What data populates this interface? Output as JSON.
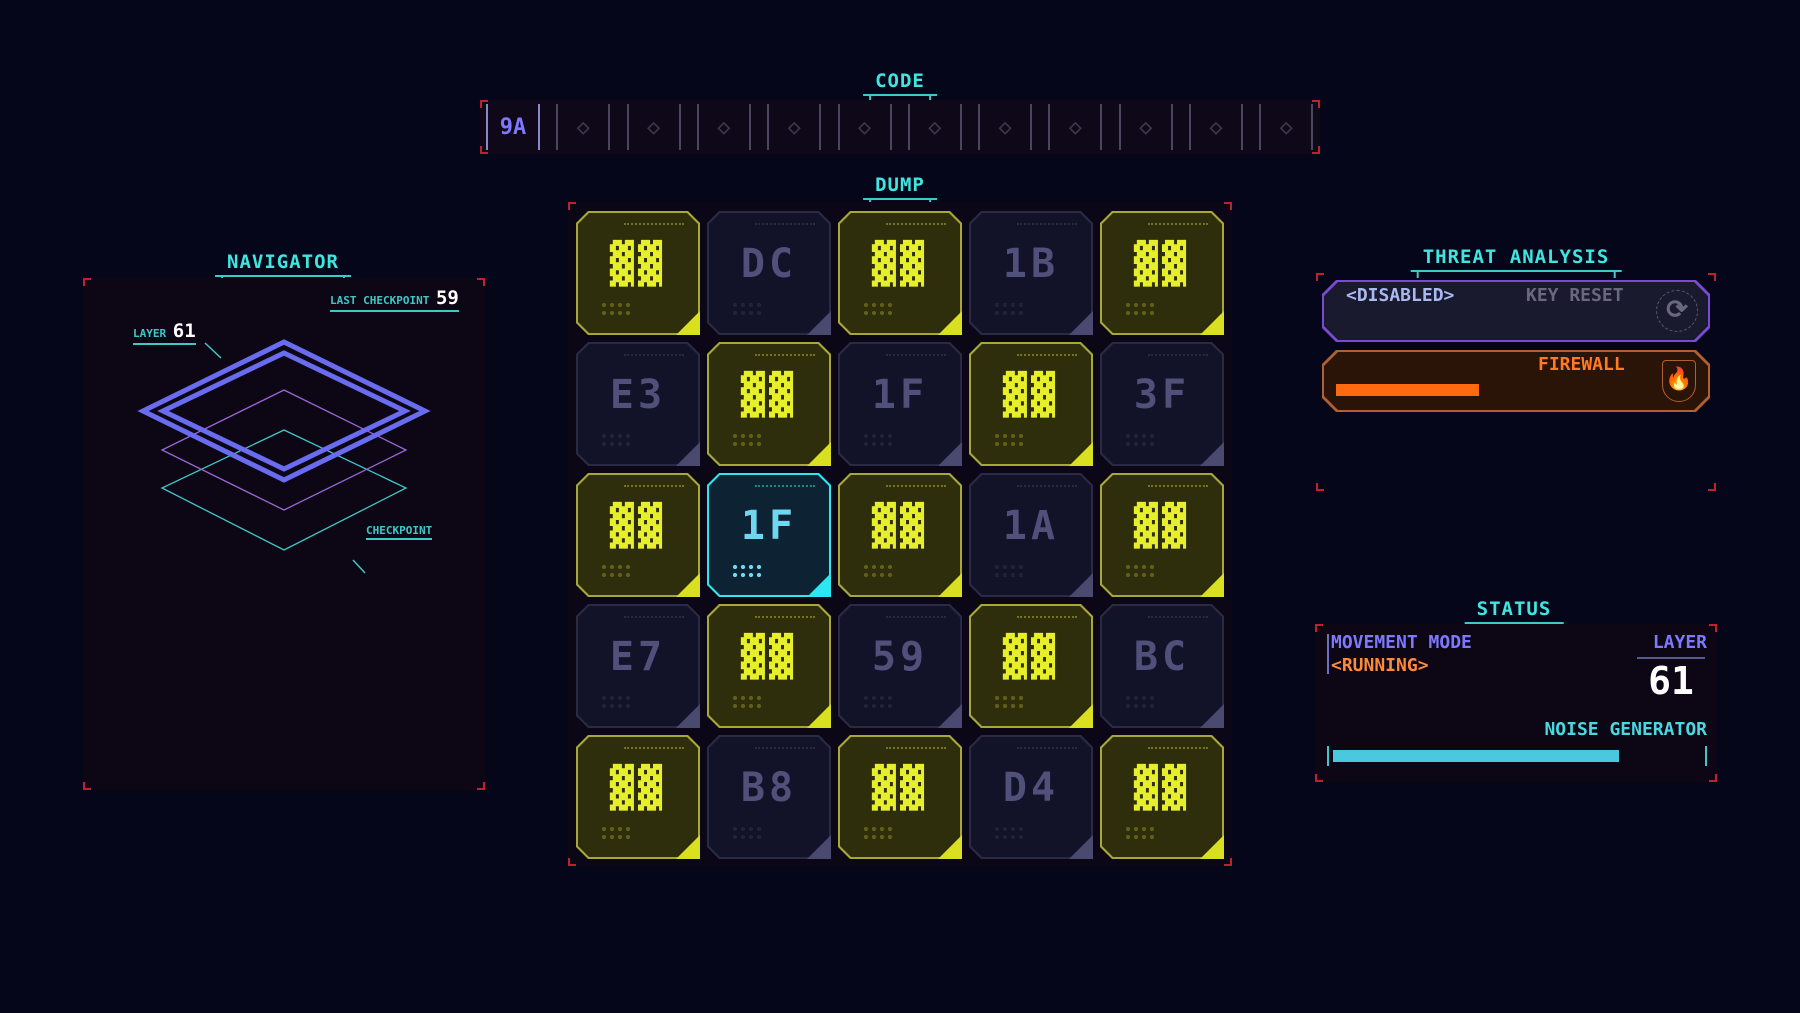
{
  "code": {
    "title": "CODE",
    "slots": [
      "9A",
      "",
      "",
      "",
      "",
      "",
      "",
      "",
      "",
      "",
      "",
      ""
    ]
  },
  "dump": {
    "title": "DUMP",
    "tiles": [
      {
        "code": "▓▓",
        "state": "solved"
      },
      {
        "code": "DC",
        "state": "dim"
      },
      {
        "code": "▓▓",
        "state": "solved"
      },
      {
        "code": "1B",
        "state": "dim"
      },
      {
        "code": "▓▓",
        "state": "solved"
      },
      {
        "code": "E3",
        "state": "dim"
      },
      {
        "code": "▓▓",
        "state": "solved"
      },
      {
        "code": "1F",
        "state": "dim"
      },
      {
        "code": "▓▓",
        "state": "solved"
      },
      {
        "code": "3F",
        "state": "dim"
      },
      {
        "code": "▓▓",
        "state": "solved"
      },
      {
        "code": "1F",
        "state": "selected"
      },
      {
        "code": "▓▓",
        "state": "solved"
      },
      {
        "code": "1A",
        "state": "dim"
      },
      {
        "code": "▓▓",
        "state": "solved"
      },
      {
        "code": "E7",
        "state": "dim"
      },
      {
        "code": "▓▓",
        "state": "solved"
      },
      {
        "code": "59",
        "state": "dim"
      },
      {
        "code": "▓▓",
        "state": "solved"
      },
      {
        "code": "BC",
        "state": "dim"
      },
      {
        "code": "▓▓",
        "state": "solved"
      },
      {
        "code": "B8",
        "state": "dim"
      },
      {
        "code": "▓▓",
        "state": "solved"
      },
      {
        "code": "D4",
        "state": "dim"
      },
      {
        "code": "▓▓",
        "state": "solved"
      }
    ]
  },
  "navigator": {
    "title": "NAVIGATOR",
    "last_checkpoint_label": "LAST CHECKPOINT",
    "last_checkpoint": "59",
    "layer_label": "LAYER",
    "layer": "61",
    "checkpoint_label": "CHECKPOINT"
  },
  "threat": {
    "title": "THREAT ANALYSIS",
    "disabled": "<DISABLED>",
    "key_reset": "KEY RESET",
    "firewall": "FIREWALL",
    "firewall_level": 0.45,
    "reset_icon": "reset-icon",
    "firewall_icon": "fire-shield-icon"
  },
  "status": {
    "title": "STATUS",
    "movement_label": "MOVEMENT MODE",
    "movement_value": "<RUNNING>",
    "layer_label": "LAYER",
    "layer": "61",
    "noise_label": "NOISE GENERATOR",
    "noise_level": 0.77
  },
  "colors": {
    "accent": "#3fe6e0",
    "solved": "#e6ef2a",
    "firewall": "#ff6a10",
    "purple": "#7d78ff"
  }
}
